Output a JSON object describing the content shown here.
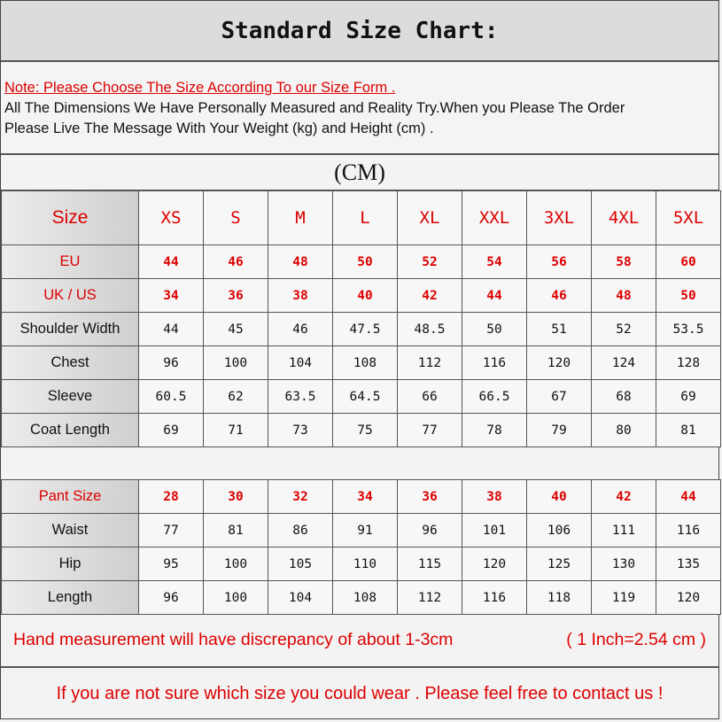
{
  "title": "Standard Size Chart:",
  "note": {
    "headline": "Note: Please Choose The Size According To our Size Form .",
    "line1": "All The Dimensions We Have Personally Measured and Reality Try.When you Please The Order",
    "line2": "Please Live The Message With Your Weight (kg) and Height (cm) ."
  },
  "unit": "(CM)",
  "top_table": {
    "header": [
      "Size",
      "XS",
      "S",
      "M",
      "L",
      "XL",
      "XXL",
      "3XL",
      "4XL",
      "5XL"
    ],
    "rows": [
      [
        "EU",
        "44",
        "46",
        "48",
        "50",
        "52",
        "54",
        "56",
        "58",
        "60"
      ],
      [
        "UK / US",
        "34",
        "36",
        "38",
        "40",
        "42",
        "44",
        "46",
        "48",
        "50"
      ],
      [
        "Shoulder Width",
        "44",
        "45",
        "46",
        "47.5",
        "48.5",
        "50",
        "51",
        "52",
        "53.5"
      ],
      [
        "Chest",
        "96",
        "100",
        "104",
        "108",
        "112",
        "116",
        "120",
        "124",
        "128"
      ],
      [
        "Sleeve",
        "60.5",
        "62",
        "63.5",
        "64.5",
        "66",
        "66.5",
        "67",
        "68",
        "69"
      ],
      [
        "Coat Length",
        "69",
        "71",
        "73",
        "75",
        "77",
        "78",
        "79",
        "80",
        "81"
      ]
    ]
  },
  "pant_table": {
    "header": [
      "Pant Size",
      "28",
      "30",
      "32",
      "34",
      "36",
      "38",
      "40",
      "42",
      "44"
    ],
    "rows": [
      [
        "Waist",
        "77",
        "81",
        "86",
        "91",
        "96",
        "101",
        "106",
        "111",
        "116"
      ],
      [
        "Hip",
        "95",
        "100",
        "105",
        "110",
        "115",
        "120",
        "125",
        "130",
        "135"
      ],
      [
        "Length",
        "96",
        "100",
        "104",
        "108",
        "112",
        "116",
        "118",
        "119",
        "120"
      ]
    ]
  },
  "discrepancy": "Hand measurement will have discrepancy of about 1-3cm",
  "conversion": "( 1 Inch=2.54 cm )",
  "footer": "If you are not sure which size you could wear . Please feel free to contact us !",
  "colors": {
    "accent_red": "#dd0000",
    "header_gray": "#dcdcdc"
  }
}
